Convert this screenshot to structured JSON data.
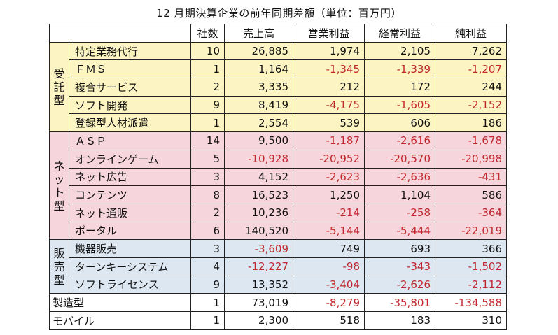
{
  "title": "12 月期決算企業の前年同期差額（単位：百万円）",
  "headers": [
    "",
    "",
    "社数",
    "売上高",
    "営業利益",
    "経常利益",
    "純利益"
  ],
  "groups": [
    {
      "label": "受託型",
      "rows": [
        {
          "name": "特定業務代行",
          "count": "10",
          "sales": "26,885",
          "op": "1,974",
          "ord": "2,105",
          "net": "7,262"
        },
        {
          "name": "ＦＭＳ",
          "count": "1",
          "sales": "1,164",
          "op": "-1,345",
          "ord": "-1,339",
          "net": "-1,207"
        },
        {
          "name": "複合サービス",
          "count": "2",
          "sales": "3,335",
          "op": "212",
          "ord": "172",
          "net": "244"
        },
        {
          "name": "ソフト開発",
          "count": "9",
          "sales": "8,419",
          "op": "-4,175",
          "ord": "-1,605",
          "net": "-2,152"
        },
        {
          "name": "登録型人材派遣",
          "count": "1",
          "sales": "2,554",
          "op": "539",
          "ord": "606",
          "net": "186"
        }
      ]
    },
    {
      "label": "ネット型",
      "rows": [
        {
          "name": "ＡＳＰ",
          "count": "14",
          "sales": "9,500",
          "op": "-1,187",
          "ord": "-2,616",
          "net": "-1,678"
        },
        {
          "name": "オンラインゲーム",
          "count": "5",
          "sales": "-10,928",
          "op": "-20,952",
          "ord": "-20,570",
          "net": "-20,998"
        },
        {
          "name": "ネット広告",
          "count": "3",
          "sales": "4,152",
          "op": "-2,623",
          "ord": "-2,636",
          "net": "-431"
        },
        {
          "name": "コンテンツ",
          "count": "8",
          "sales": "16,523",
          "op": "1,250",
          "ord": "1,104",
          "net": "586"
        },
        {
          "name": "ネット通販",
          "count": "2",
          "sales": "10,236",
          "op": "-214",
          "ord": "-258",
          "net": "-364"
        },
        {
          "name": "ポータル",
          "count": "6",
          "sales": "140,520",
          "op": "-5,144",
          "ord": "-5,444",
          "net": "-22,019"
        }
      ]
    },
    {
      "label": "販売型",
      "rows": [
        {
          "name": "機器販売",
          "count": "3",
          "sales": "-3,609",
          "op": "749",
          "ord": "693",
          "net": "366"
        },
        {
          "name": "ターンキーシステム",
          "count": "4",
          "sales": "-12,227",
          "op": "-98",
          "ord": "-343",
          "net": "-1,502"
        },
        {
          "name": "ソフトライセンス",
          "count": "9",
          "sales": "13,352",
          "op": "-3,404",
          "ord": "-2,626",
          "net": "-2,112"
        }
      ]
    }
  ],
  "others": [
    {
      "name": "製造型",
      "count": "1",
      "sales": "73,019",
      "op": "-8,279",
      "ord": "-35,801",
      "net": "-134,588"
    },
    {
      "name": "モバイル",
      "count": "1",
      "sales": "2,300",
      "op": "518",
      "ord": "183",
      "net": "310"
    }
  ],
  "colors": {
    "jutaku_bg": "#fdf4c3",
    "net_bg": "#f6d5dc",
    "hanbai_bg": "#dde7f2",
    "negative": "#c0282d"
  }
}
